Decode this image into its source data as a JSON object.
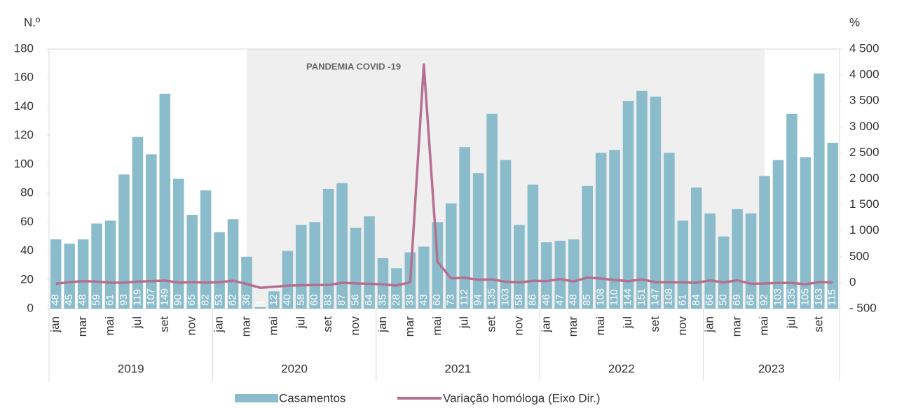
{
  "chart_data": {
    "type": "bar_line",
    "y_label": "N.º",
    "y2_label": "%",
    "annotation": "PANDEMIA COVID -19",
    "shaded": {
      "from": 14,
      "to": 52
    },
    "categories": [
      "jan",
      null,
      "mar",
      null,
      "mai",
      null,
      "jul",
      null,
      "set",
      null,
      "nov",
      null,
      "jan",
      null,
      "mar",
      null,
      "mai",
      null,
      "jul",
      null,
      "set",
      null,
      "nov",
      null,
      "jan",
      null,
      "mar",
      null,
      "mai",
      null,
      "jul",
      null,
      "set",
      null,
      "nov",
      null,
      "jan",
      null,
      "mar",
      null,
      "mai",
      null,
      "jul",
      null,
      "set",
      null,
      "nov",
      null,
      "jan",
      null,
      "mar",
      null,
      "mai",
      null,
      "jul",
      null,
      "set",
      null
    ],
    "groups": [
      "2019",
      "2020",
      "2021",
      "2022",
      "2023"
    ],
    "series": [
      {
        "name": "Casamentos",
        "type": "bar",
        "color": "#8bbccb",
        "values": [
          48,
          45,
          48,
          59,
          61,
          93,
          119,
          107,
          149,
          90,
          65,
          82,
          53,
          62,
          36,
          1,
          12,
          40,
          58,
          60,
          83,
          87,
          56,
          64,
          35,
          28,
          39,
          43,
          60,
          73,
          112,
          94,
          135,
          103,
          58,
          86,
          46,
          47,
          48,
          85,
          108,
          110,
          144,
          151,
          147,
          108,
          61,
          84,
          66,
          50,
          69,
          66,
          92,
          103,
          135,
          105,
          163,
          115
        ]
      },
      {
        "name": "Variação homóloga (Eixo Dir.)",
        "type": "line",
        "axis": "y2",
        "color": "#b5708f",
        "values": [
          -20,
          10,
          30,
          20,
          0,
          0,
          20,
          30,
          40,
          0,
          10,
          0,
          10,
          38,
          -25,
          -98,
          -80,
          -57,
          -50,
          -45,
          -44,
          -3,
          -14,
          -22,
          -34,
          -55,
          8,
          4200,
          400,
          83,
          93,
          57,
          63,
          18,
          4,
          34,
          31,
          68,
          23,
          98,
          80,
          51,
          29,
          61,
          9,
          5,
          5,
          -2,
          43,
          6,
          44,
          -22,
          -15,
          -6,
          -6,
          -30,
          11,
          6
        ]
      }
    ],
    "ylim": [
      0,
      180
    ],
    "yticks": [
      0,
      20,
      40,
      60,
      80,
      100,
      120,
      140,
      160,
      180
    ],
    "y2lim": [
      -500,
      4500
    ],
    "y2ticks": [
      {
        "value": -500,
        "label": "- 500"
      },
      0,
      500,
      {
        "value": 1000,
        "label": "1 000"
      },
      {
        "value": 1500,
        "label": "1 500"
      },
      {
        "value": 2000,
        "label": "2 000"
      },
      {
        "value": 2500,
        "label": "2 500"
      },
      {
        "value": 3000,
        "label": "3 000"
      },
      {
        "value": 3500,
        "label": "3 500"
      },
      {
        "value": 4000,
        "label": "4 000"
      },
      {
        "value": 4500,
        "label": "4 500"
      }
    ]
  }
}
